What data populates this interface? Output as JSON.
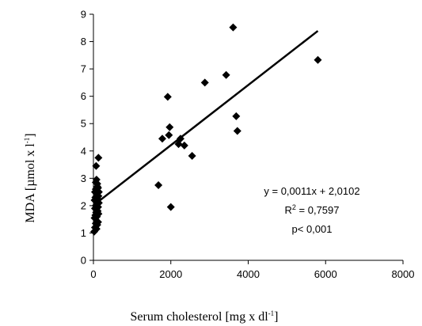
{
  "chart_data": {
    "type": "scatter",
    "xlabel": "Serum cholesterol [mg x dl",
    "xlabel_sup": "-1",
    "xlabel_tail": "]",
    "ylabel": "MDA [µmol x l",
    "ylabel_sup": "-1",
    "ylabel_tail": "]",
    "xlim": [
      0,
      8000
    ],
    "ylim": [
      0,
      9
    ],
    "x_ticks": [
      "0",
      "2000",
      "4000",
      "6000",
      "8000"
    ],
    "y_ticks": [
      "0",
      "1",
      "2",
      "3",
      "4",
      "5",
      "6",
      "7",
      "8",
      "9"
    ],
    "grid": false,
    "marker": "diamond",
    "color": "#000000",
    "points": [
      [
        20,
        1.05
      ],
      [
        40,
        1.2
      ],
      [
        60,
        1.35
      ],
      [
        80,
        1.15
      ],
      [
        100,
        1.3
      ],
      [
        120,
        1.4
      ],
      [
        30,
        1.55
      ],
      [
        50,
        1.65
      ],
      [
        70,
        1.75
      ],
      [
        90,
        1.6
      ],
      [
        110,
        1.8
      ],
      [
        130,
        1.7
      ],
      [
        40,
        1.9
      ],
      [
        60,
        2.0
      ],
      [
        80,
        1.85
      ],
      [
        100,
        2.05
      ],
      [
        120,
        1.95
      ],
      [
        140,
        2.1
      ],
      [
        30,
        2.2
      ],
      [
        50,
        2.3
      ],
      [
        70,
        2.15
      ],
      [
        90,
        2.4
      ],
      [
        110,
        2.25
      ],
      [
        130,
        2.35
      ],
      [
        40,
        2.5
      ],
      [
        60,
        2.6
      ],
      [
        80,
        2.55
      ],
      [
        100,
        2.7
      ],
      [
        120,
        2.65
      ],
      [
        140,
        2.5
      ],
      [
        60,
        2.85
      ],
      [
        80,
        2.95
      ],
      [
        100,
        2.8
      ],
      [
        70,
        3.45
      ],
      [
        130,
        3.75
      ],
      [
        1680,
        2.75
      ],
      [
        1780,
        4.45
      ],
      [
        1920,
        5.98
      ],
      [
        1950,
        4.58
      ],
      [
        1970,
        4.87
      ],
      [
        2000,
        1.95
      ],
      [
        2200,
        4.25
      ],
      [
        2250,
        4.45
      ],
      [
        2350,
        4.2
      ],
      [
        2550,
        3.82
      ],
      [
        2880,
        6.5
      ],
      [
        3430,
        6.78
      ],
      [
        3610,
        8.52
      ],
      [
        3690,
        5.27
      ],
      [
        3720,
        4.73
      ],
      [
        5800,
        7.33
      ]
    ],
    "trendline": {
      "x": [
        0,
        5800
      ],
      "y": [
        2.0102,
        8.3902
      ]
    },
    "annotation": {
      "equation": "y = 0,0011x + 2,0102",
      "r2_prefix": "R",
      "r2_sup": "2",
      "r2_value": " = 0,7597",
      "p": "p< 0,001"
    }
  }
}
